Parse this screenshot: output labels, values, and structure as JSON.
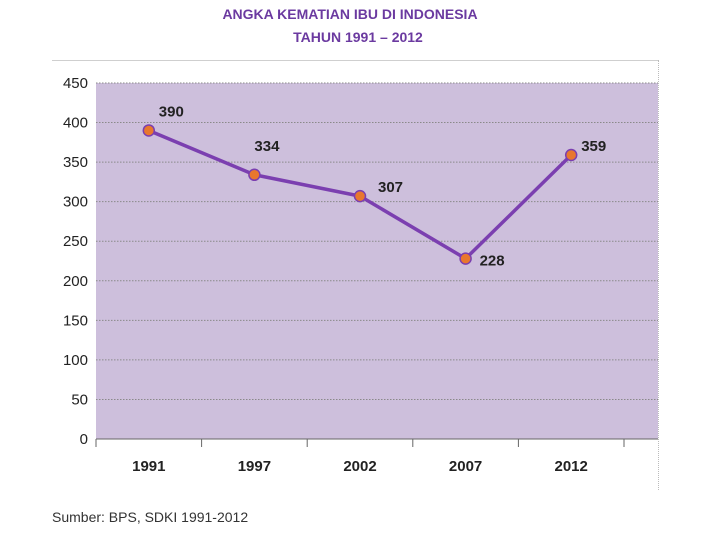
{
  "title": {
    "line1": "ANGKA KEMATIAN IBU DI INDONESIA",
    "line2": "TAHUN 1991 – 2012"
  },
  "source": "Sumber: BPS, SDKI 1991-2012",
  "chart_data": {
    "type": "line",
    "categories": [
      "1991",
      "1997",
      "2002",
      "2007",
      "2012"
    ],
    "values": [
      390,
      334,
      307,
      228,
      359
    ],
    "data_labels": [
      "390",
      "334",
      "307",
      "228",
      "359"
    ],
    "ylim": [
      0,
      450
    ],
    "yticks": [
      "0",
      "50",
      "100",
      "150",
      "200",
      "250",
      "300",
      "350",
      "400",
      "450"
    ],
    "grid": true,
    "legend": "none",
    "colors": {
      "plot_background": "#cdbfdc",
      "line": "#7b3fb0",
      "marker_fill": "#e8772e",
      "marker_edge": "#7b3fb0",
      "gridline": "#8a8a8a",
      "axis_text": "#222222"
    }
  }
}
